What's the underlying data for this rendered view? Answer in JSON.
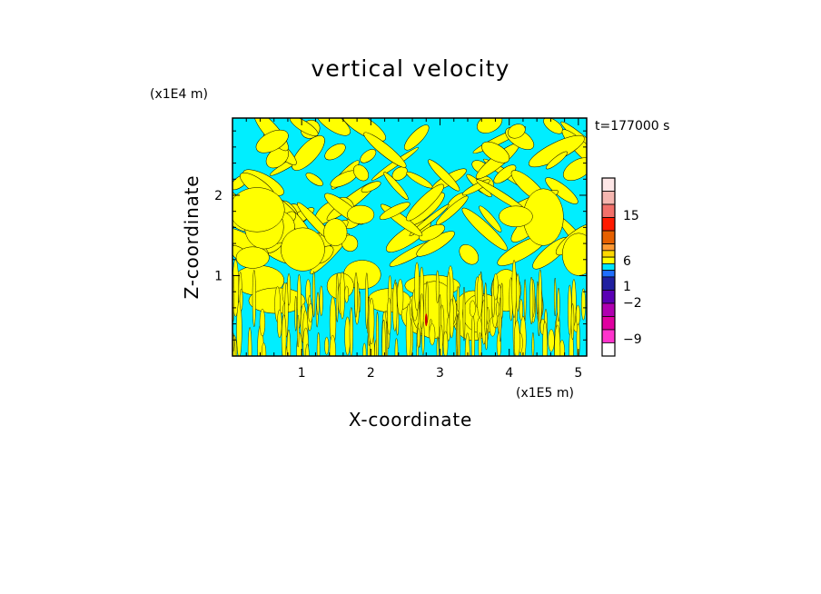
{
  "chart_data": {
    "type": "heatmap",
    "title": "vertical velocity",
    "xlabel": "X-coordinate",
    "ylabel": "Z-coordinate",
    "x_unit": "(x1E5 m)",
    "y_unit": "(x1E4 m)",
    "time_label": "t=177000 s",
    "xlim": [
      0.0,
      5.12
    ],
    "ylim": [
      0.0,
      2.96
    ],
    "x_ticks": [
      1,
      2,
      3,
      4,
      5
    ],
    "y_ticks": [
      1,
      2
    ],
    "x_tick_labels": [
      "1",
      "2",
      "3",
      "4",
      "5"
    ],
    "y_tick_labels": [
      "1",
      "2"
    ],
    "colorbar": {
      "levels": [
        -9,
        -2,
        1,
        6,
        15
      ],
      "labels": [
        "15",
        "6",
        "1",
        "-2",
        "-9"
      ],
      "colors_top_to_bottom": [
        "#fde6e6",
        "#f5b6b0",
        "#f2706a",
        "#ff1a00",
        "#e66000",
        "#ff9933",
        "#ffd700",
        "#ffff00",
        "#00e5ff",
        "#1f6fff",
        "#2020a0",
        "#5a00b4",
        "#b000b0",
        "#e000a0",
        "#ff33cc"
      ]
    },
    "field_colors": {
      "positive": "#ffff00",
      "negative": "#00eeff",
      "contour": "#000000",
      "extreme": "#cc0000"
    },
    "field_note": "Alternating positive (yellow) and negative (cyan) vertical-velocity cells; tilted wave bands aloft, fine vertical streaks near the surface; small extreme updraft near x=2.8, z=0.3-0.6."
  }
}
